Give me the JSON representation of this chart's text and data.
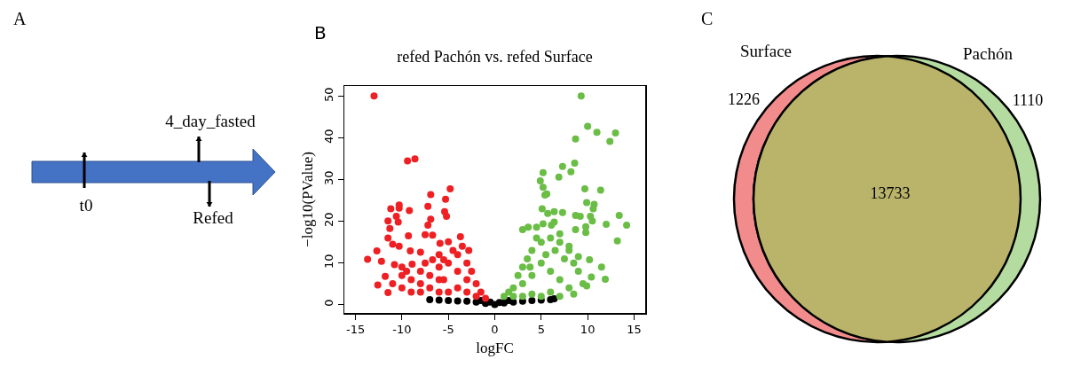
{
  "chart_data": [
    {
      "type": "other",
      "annotations": [
        "A",
        "4_day_fasted",
        "t0",
        "Refed"
      ]
    },
    {
      "type": "scatter",
      "title": "refed Pachón vs. refed Surface",
      "xlabel": "logFC",
      "ylabel": "−log10(PValue)",
      "annotations": [
        "B"
      ],
      "xlim": [
        -16.2,
        16.2
      ],
      "xticks": [
        -15,
        -10,
        -5,
        0,
        5,
        10,
        15
      ],
      "ylim": [
        -2,
        52.5
      ],
      "yticks": [
        0,
        10,
        20,
        30,
        40,
        50
      ],
      "grid": false,
      "legend": false,
      "marker": "circle",
      "series": [
        {
          "color": "#000000",
          "x": [
            -7,
            -6,
            -5,
            -4,
            -3,
            -2,
            -1,
            0,
            1,
            2,
            3,
            4,
            5,
            6,
            6.4,
            -1.5,
            1.5,
            -0.5,
            0.5
          ],
          "values": [
            1.2,
            1.1,
            1,
            0.9,
            0.8,
            0.6,
            0.3,
            0,
            0.4,
            0.6,
            0.8,
            1,
            1.1,
            1.2,
            1.4,
            1,
            1,
            0.6,
            0.5
          ]
        },
        {
          "color": "#ee2024",
          "x": [
            -13,
            -13.7,
            -12.7,
            -12.6,
            -12.2,
            -9.4,
            -8.6,
            -11.2,
            -10.3,
            -10.3,
            -11.5,
            -11.3,
            -10.6,
            -10.4,
            -11.5,
            -9.3,
            -9.2,
            -11,
            -10.3,
            -11.5,
            -11.8,
            -6.9,
            -7.2,
            -6.9,
            -7.2,
            -4.8,
            -5.3,
            -5.4,
            -5.2,
            -7.5,
            -6.7,
            -3.7,
            -5,
            -9.1,
            -8,
            -8.9,
            -10,
            -10.8,
            -5.9,
            -6.7,
            -5.5,
            -10,
            -9,
            -8,
            -7,
            -6,
            -5,
            -4,
            -3,
            -2.5,
            -2,
            -1.5,
            -1,
            -3,
            -4,
            -5,
            -6,
            -7,
            -8,
            -9,
            -10,
            -11,
            -3,
            -2,
            -4,
            -6,
            -8,
            -9.5,
            -7.5,
            -5.5,
            -3.5,
            -2.8,
            -4.5,
            -6
          ],
          "values": [
            50.1,
            10.9,
            12.9,
            4.7,
            10.4,
            34.5,
            35,
            23,
            23.9,
            23.2,
            20.1,
            18.3,
            21.2,
            19.8,
            16,
            16.5,
            22.6,
            14.5,
            14,
            2.9,
            6.8,
            26.4,
            23.6,
            20.5,
            19.1,
            27.8,
            25.3,
            22.3,
            21.2,
            16.8,
            16.7,
            16.3,
            15.1,
            12.9,
            12.6,
            9.7,
            9,
            9.6,
            14.7,
            10.8,
            10.8,
            7,
            6,
            8,
            7,
            9,
            10,
            12,
            10,
            8,
            5,
            3,
            1.5,
            6,
            4,
            3,
            3,
            4,
            3,
            3,
            4,
            5,
            3,
            2,
            8,
            6,
            5,
            8,
            10,
            6,
            14,
            13,
            13,
            12
          ]
        },
        {
          "color": "#6abd45",
          "x": [
            9.3,
            10,
            11,
            13,
            12.4,
            8.7,
            8.6,
            7.3,
            8.2,
            6.9,
            5.2,
            4.9,
            5.2,
            5.6,
            5.4,
            9.7,
            11.4,
            9.9,
            10.7,
            10.6,
            5.1,
            5.7,
            6.4,
            7.3,
            8.7,
            9.2,
            13.4,
            10.3,
            10.5,
            12,
            14.2,
            9.8,
            8.7,
            9.8,
            13.2,
            3,
            3.6,
            4.5,
            5.2,
            6.1,
            6.4,
            10.2,
            11.5,
            9.9,
            10.4,
            11.9,
            1,
            2,
            2.5,
            3,
            3.5,
            4,
            5,
            6,
            7,
            8,
            8.5,
            9,
            9.5,
            8,
            7,
            6,
            5,
            4,
            3,
            6,
            5,
            4,
            7,
            8.5,
            1.5,
            2,
            3,
            7.5,
            5.5,
            4.5,
            7,
            8,
            9,
            6.5,
            3.8
          ],
          "values": [
            50.1,
            42.8,
            41.4,
            41.2,
            39.2,
            39.8,
            34,
            33.2,
            31.9,
            30.6,
            31.7,
            29.7,
            28.2,
            26.6,
            26.3,
            27.8,
            27.5,
            24.5,
            24.1,
            23,
            23,
            21.9,
            22.3,
            22.1,
            21.4,
            21.2,
            21.4,
            21.2,
            20.1,
            19.3,
            19.1,
            18.7,
            18,
            17.3,
            15.3,
            18,
            18.6,
            18.6,
            19.4,
            19.1,
            19.8,
            10.8,
            9,
            4.5,
            6.6,
            6.1,
            2,
            4,
            7,
            9,
            11,
            13,
            15,
            16,
            15,
            13,
            10,
            8,
            5,
            4,
            6,
            8,
            10,
            7,
            5,
            3,
            2,
            2.5,
            2,
            2.5,
            3,
            2,
            2,
            11,
            12,
            16,
            17,
            14,
            11.5,
            13,
            9
          ]
        }
      ]
    },
    {
      "type": "other",
      "annotations": [
        "C",
        "Surface",
        "Pachón",
        "1226",
        "13733",
        "1110"
      ],
      "colors": [
        "#f28c8c",
        "#bab46a",
        "#b5dca0"
      ]
    }
  ]
}
